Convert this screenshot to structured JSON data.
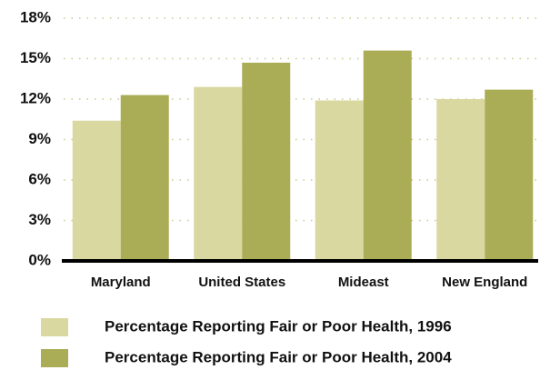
{
  "chart_data": {
    "type": "bar",
    "categories": [
      "Maryland",
      "United States",
      "Mideast",
      "New England"
    ],
    "series": [
      {
        "name": "Percentage Reporting Fair or Poor Health, 1996",
        "color": "#d9d8a1",
        "values": [
          10.4,
          12.9,
          11.9,
          12.0
        ]
      },
      {
        "name": "Percentage Reporting Fair or Poor Health, 2004",
        "color": "#abad56",
        "values": [
          12.3,
          14.7,
          15.6,
          12.7
        ]
      }
    ],
    "ylim": [
      0,
      18
    ],
    "yticks": [
      {
        "value": 0,
        "label": "0%"
      },
      {
        "value": 3,
        "label": "3%"
      },
      {
        "value": 6,
        "label": "6%"
      },
      {
        "value": 9,
        "label": "9%"
      },
      {
        "value": 12,
        "label": "12%"
      },
      {
        "value": 15,
        "label": "15%"
      },
      {
        "value": 18,
        "label": "18%"
      }
    ],
    "grid": true
  }
}
